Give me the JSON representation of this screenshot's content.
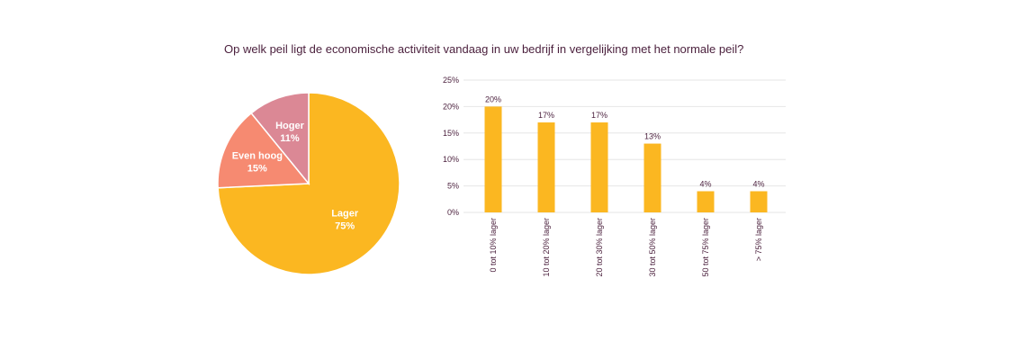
{
  "title": "Op welk peil ligt de economische activiteit vandaag in uw bedrijf in vergelijking met het normale peil?",
  "colors": {
    "lager": "#fbb721",
    "even_hoog": "#f68a71",
    "hoger": "#db8895",
    "text": "#4a1f3c",
    "grid": "#e6e6e6"
  },
  "chart_data": [
    {
      "type": "pie",
      "slices": [
        {
          "label": "Lager",
          "value": 75,
          "display": "75%"
        },
        {
          "label": "Even hoog",
          "value": 15,
          "display": "15%"
        },
        {
          "label": "Hoger",
          "value": 11,
          "display": "11%"
        }
      ]
    },
    {
      "type": "bar",
      "categories": [
        "0 tot 10% lager",
        "10 tot 20% lager",
        "20 tot 30% lager",
        "30 tot 50% lager",
        "50 tot 75% lager",
        "> 75% lager"
      ],
      "values": [
        20,
        17,
        17,
        13,
        4,
        4
      ],
      "value_labels": [
        "20%",
        "17%",
        "17%",
        "13%",
        "4%",
        "4%"
      ],
      "yticks": [
        "0%",
        "5%",
        "10%",
        "15%",
        "20%",
        "25%"
      ],
      "ylim": [
        0,
        25
      ],
      "grid": true
    }
  ]
}
